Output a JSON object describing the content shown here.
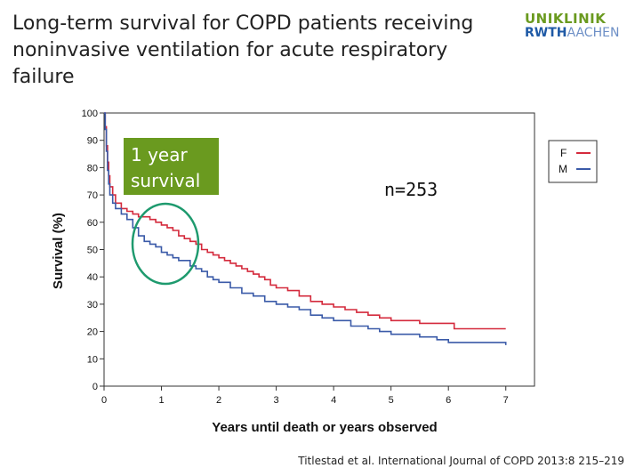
{
  "slide": {
    "title_line1": "Long-term survival for COPD patients receiving",
    "title_line2": "noninvasive ventilation for acute respiratory failure",
    "logo_top": "UNIKLINIK",
    "logo_rwth": "RWTH",
    "logo_aachen": "AACHEN",
    "citation": "Titlestad et al. International Journal of COPD 2013:8 215–219"
  },
  "colors": {
    "female": "#d42a3c",
    "male": "#3a5aa8",
    "badge": "#6a9a1f",
    "ellipse": "#1e9a6e"
  },
  "chart_data": {
    "type": "line",
    "xlabel": "Years until death or years observed",
    "ylabel": "Survival (%)",
    "xlim": [
      0,
      7.5
    ],
    "ylim": [
      0,
      100
    ],
    "xticks": [
      0,
      1,
      2,
      3,
      4,
      5,
      6,
      7
    ],
    "yticks": [
      0,
      10,
      20,
      30,
      40,
      50,
      60,
      70,
      80,
      90,
      100
    ],
    "grid": false,
    "legend_position": "top-right",
    "annotations": {
      "badge_line1": "1 year",
      "badge_line2": "survival",
      "n": "n=253"
    },
    "series": [
      {
        "name": "F",
        "step": true,
        "x": [
          0,
          0.02,
          0.04,
          0.06,
          0.08,
          0.1,
          0.15,
          0.2,
          0.3,
          0.4,
          0.5,
          0.6,
          0.7,
          0.8,
          0.9,
          1.0,
          1.1,
          1.2,
          1.3,
          1.4,
          1.5,
          1.6,
          1.7,
          1.8,
          1.9,
          2.0,
          2.1,
          2.2,
          2.3,
          2.4,
          2.5,
          2.6,
          2.7,
          2.8,
          2.9,
          3.0,
          3.2,
          3.4,
          3.6,
          3.8,
          4.0,
          4.2,
          4.4,
          4.6,
          4.8,
          5.0,
          5.5,
          6.0,
          6.1,
          7.0
        ],
        "y": [
          100,
          95,
          88,
          82,
          77,
          73,
          70,
          67,
          65,
          64,
          63,
          62,
          62,
          61,
          60,
          59,
          58,
          57,
          55,
          54,
          53,
          52,
          50,
          49,
          48,
          47,
          46,
          45,
          44,
          43,
          42,
          41,
          40,
          39,
          37,
          36,
          35,
          33,
          31,
          30,
          29,
          28,
          27,
          26,
          25,
          24,
          23,
          23,
          21,
          21
        ]
      },
      {
        "name": "M",
        "step": true,
        "x": [
          0,
          0.02,
          0.04,
          0.06,
          0.08,
          0.1,
          0.15,
          0.2,
          0.3,
          0.4,
          0.5,
          0.6,
          0.7,
          0.8,
          0.9,
          1.0,
          1.1,
          1.2,
          1.3,
          1.5,
          1.6,
          1.7,
          1.8,
          1.9,
          2.0,
          2.2,
          2.4,
          2.6,
          2.8,
          3.0,
          3.2,
          3.4,
          3.6,
          3.8,
          4.0,
          4.3,
          4.6,
          4.8,
          5.0,
          5.5,
          5.8,
          6.0,
          7.0
        ],
        "y": [
          100,
          94,
          86,
          79,
          74,
          70,
          67,
          65,
          63,
          61,
          58,
          55,
          53,
          52,
          51,
          49,
          48,
          47,
          46,
          44,
          43,
          42,
          40,
          39,
          38,
          36,
          34,
          33,
          31,
          30,
          29,
          28,
          26,
          25,
          24,
          22,
          21,
          20,
          19,
          18,
          17,
          16,
          15
        ]
      }
    ]
  }
}
